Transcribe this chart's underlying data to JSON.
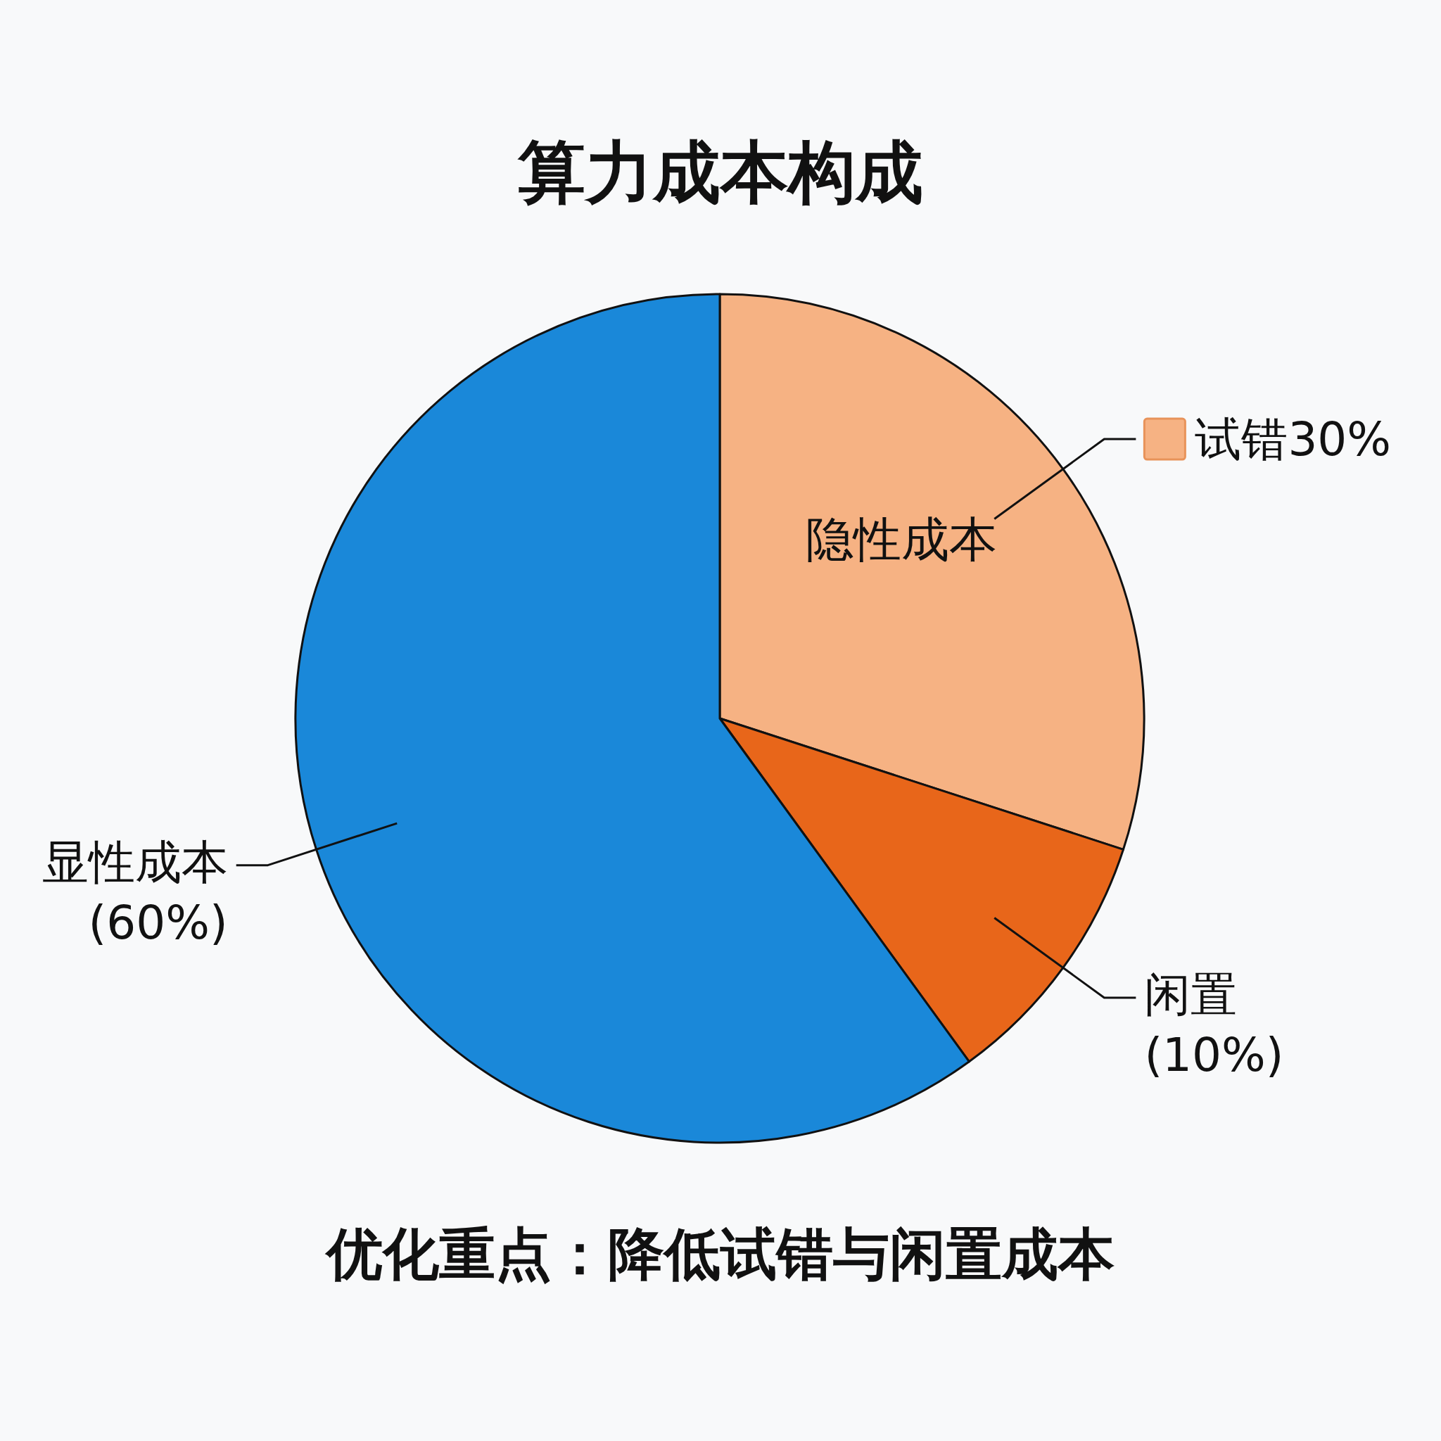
{
  "chart_data": {
    "type": "pie",
    "title": "算力成本构成",
    "categories": [
      "试错",
      "闲置",
      "显性成本"
    ],
    "values": [
      30,
      10,
      60
    ],
    "colors": [
      "#f6b283",
      "#e8661a",
      "#1a88d9"
    ],
    "value_labels": [
      "30%",
      "(10%)",
      "(60%)"
    ],
    "annotations": [
      {
        "text": "隐性成本",
        "x": "试错"
      },
      "优化重点：降低试错与闲置成本"
    ]
  }
}
